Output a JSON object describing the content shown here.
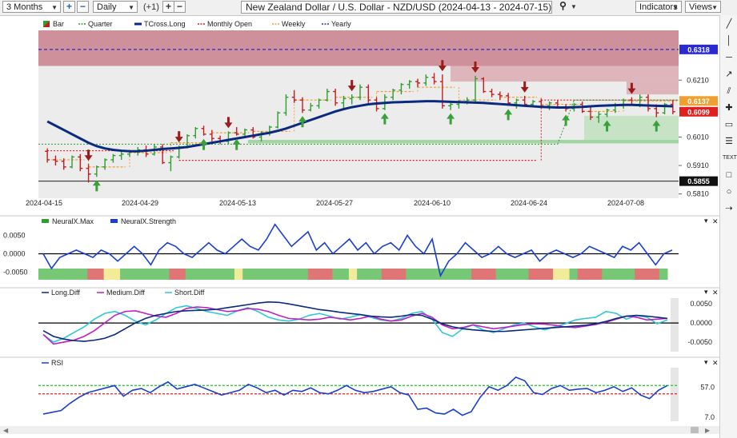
{
  "toolbar": {
    "period": "3 Months",
    "interval": "Daily",
    "offset": "(+1)",
    "title": "New Zealand Dollar / U.S. Dollar - NZD/USD (2024-04-13 - 2024-07-15)",
    "indicators_label": "Indicators",
    "views_label": "Views"
  },
  "sidebar_tools": [
    "line-tool-icon",
    "vertical-line-icon",
    "horizontal-line-icon",
    "ray-icon",
    "channel-icon",
    "crosshair-icon",
    "note-icon",
    "fib-icon",
    "text-icon",
    "rectangle-icon",
    "ellipse-icon",
    "arrow-tool-icon"
  ],
  "sidebar_text": "TEXT",
  "chart_data": [
    {
      "type": "candlestick",
      "legend": [
        {
          "name": "Bar",
          "color": "#2e9e2e"
        },
        {
          "name": "Quarter",
          "color": "#2e9e2e"
        },
        {
          "name": "TCross.Long",
          "color": "#0a2a80"
        },
        {
          "name": "Monthly Open",
          "color": "#d42020"
        },
        {
          "name": "Weekly",
          "color": "#f0a030"
        },
        {
          "name": "Yearly",
          "color": "#2a2ad0"
        }
      ],
      "x_dates": [
        "2024-04-15",
        "2024-04-29",
        "2024-05-13",
        "2024-05-27",
        "2024-06-10",
        "2024-06-24",
        "2024-07-08"
      ],
      "y_ticks": [
        0.581,
        0.591,
        0.601,
        0.621
      ],
      "y_tick_labels": [
        "0.5810",
        "0.5910",
        "0.6010",
        "0.6210"
      ],
      "ylim": [
        0.5795,
        0.6385
      ],
      "price_tags": [
        {
          "label": "0.6318",
          "value": 0.6318,
          "color": "#2a2ad0"
        },
        {
          "label": "0.6137",
          "value": 0.6137,
          "color": "#f0a030"
        },
        {
          "label": "0.6099",
          "value": 0.6099,
          "color": "#e02020"
        },
        {
          "label": "0.5855",
          "value": 0.5855,
          "color": "#111111"
        }
      ],
      "yearly_level": 0.6318,
      "low_level": 0.5855,
      "candles": [
        [
          0.596,
          0.597,
          0.592,
          0.593
        ],
        [
          0.593,
          0.5945,
          0.591,
          0.5925
        ],
        [
          0.5925,
          0.5935,
          0.5895,
          0.5905
        ],
        [
          0.5905,
          0.5945,
          0.59,
          0.594
        ],
        [
          0.594,
          0.595,
          0.589,
          0.59
        ],
        [
          0.59,
          0.5915,
          0.585,
          0.588
        ],
        [
          0.588,
          0.591,
          0.587,
          0.5905
        ],
        [
          0.5905,
          0.5935,
          0.5895,
          0.593
        ],
        [
          0.593,
          0.595,
          0.592,
          0.5945
        ],
        [
          0.5945,
          0.596,
          0.593,
          0.595
        ],
        [
          0.595,
          0.5965,
          0.594,
          0.5958
        ],
        [
          0.5958,
          0.5975,
          0.5945,
          0.5965
        ],
        [
          0.5965,
          0.598,
          0.594,
          0.595
        ],
        [
          0.595,
          0.5985,
          0.5945,
          0.5975
        ],
        [
          0.5975,
          0.5985,
          0.5915,
          0.592
        ],
        [
          0.592,
          0.5945,
          0.589,
          0.594
        ],
        [
          0.594,
          0.598,
          0.5935,
          0.5975
        ],
        [
          0.5975,
          0.602,
          0.597,
          0.6015
        ],
        [
          0.6015,
          0.6045,
          0.6005,
          0.604
        ],
        [
          0.604,
          0.605,
          0.6015,
          0.602
        ],
        [
          0.602,
          0.6035,
          0.5995,
          0.6005
        ],
        [
          0.6005,
          0.6015,
          0.5985,
          0.5995
        ],
        [
          0.5995,
          0.603,
          0.5985,
          0.6025
        ],
        [
          0.6025,
          0.6045,
          0.6015,
          0.602
        ],
        [
          0.602,
          0.604,
          0.601,
          0.6035
        ],
        [
          0.6035,
          0.6045,
          0.6005,
          0.601
        ],
        [
          0.601,
          0.603,
          0.5995,
          0.6025
        ],
        [
          0.6025,
          0.605,
          0.6015,
          0.6045
        ],
        [
          0.6045,
          0.61,
          0.604,
          0.6095
        ],
        [
          0.6095,
          0.616,
          0.6085,
          0.615
        ],
        [
          0.615,
          0.6175,
          0.613,
          0.614
        ],
        [
          0.614,
          0.615,
          0.6095,
          0.6105
        ],
        [
          0.6105,
          0.613,
          0.61,
          0.612
        ],
        [
          0.612,
          0.6145,
          0.611,
          0.614
        ],
        [
          0.614,
          0.618,
          0.6135,
          0.617
        ],
        [
          0.617,
          0.618,
          0.612,
          0.613
        ],
        [
          0.613,
          0.6155,
          0.611,
          0.6145
        ],
        [
          0.6145,
          0.616,
          0.6125,
          0.615
        ],
        [
          0.615,
          0.6195,
          0.614,
          0.6185
        ],
        [
          0.6185,
          0.6195,
          0.613,
          0.614
        ],
        [
          0.614,
          0.615,
          0.61,
          0.611
        ],
        [
          0.611,
          0.616,
          0.6105,
          0.615
        ],
        [
          0.615,
          0.618,
          0.614,
          0.6175
        ],
        [
          0.6175,
          0.62,
          0.616,
          0.6195
        ],
        [
          0.6195,
          0.621,
          0.618,
          0.6205
        ],
        [
          0.6205,
          0.6215,
          0.6185,
          0.62
        ],
        [
          0.62,
          0.623,
          0.619,
          0.622
        ],
        [
          0.622,
          0.6235,
          0.6195,
          0.6205
        ],
        [
          0.6205,
          0.623,
          0.611,
          0.612
        ],
        [
          0.612,
          0.6135,
          0.6105,
          0.6125
        ],
        [
          0.6125,
          0.614,
          0.611,
          0.6135
        ],
        [
          0.6135,
          0.615,
          0.6125,
          0.614
        ],
        [
          0.614,
          0.6225,
          0.6135,
          0.6215
        ],
        [
          0.6215,
          0.622,
          0.6165,
          0.617
        ],
        [
          0.617,
          0.618,
          0.615,
          0.616
        ],
        [
          0.616,
          0.617,
          0.614,
          0.6155
        ],
        [
          0.6155,
          0.6165,
          0.612,
          0.613
        ],
        [
          0.613,
          0.6145,
          0.611,
          0.614
        ],
        [
          0.614,
          0.6155,
          0.612,
          0.6125
        ],
        [
          0.6125,
          0.614,
          0.6115,
          0.6135
        ],
        [
          0.6135,
          0.6145,
          0.6115,
          0.612
        ],
        [
          0.612,
          0.6135,
          0.6105,
          0.613
        ],
        [
          0.613,
          0.614,
          0.611,
          0.6115
        ],
        [
          0.6115,
          0.6125,
          0.61,
          0.611
        ],
        [
          0.611,
          0.613,
          0.61,
          0.6125
        ],
        [
          0.6125,
          0.6135,
          0.6095,
          0.61
        ],
        [
          0.61,
          0.6115,
          0.607,
          0.608
        ],
        [
          0.608,
          0.61,
          0.606,
          0.609
        ],
        [
          0.609,
          0.611,
          0.608,
          0.6105
        ],
        [
          0.6105,
          0.613,
          0.6095,
          0.612
        ],
        [
          0.612,
          0.6145,
          0.611,
          0.614
        ],
        [
          0.614,
          0.615,
          0.612,
          0.6125
        ],
        [
          0.6125,
          0.616,
          0.6115,
          0.615
        ],
        [
          0.615,
          0.616,
          0.61,
          0.611
        ],
        [
          0.611,
          0.6125,
          0.608,
          0.6095
        ],
        [
          0.6095,
          0.613,
          0.609,
          0.6125
        ],
        [
          0.6125,
          0.614,
          0.609,
          0.6099
        ]
      ],
      "tcross_long": [
        0.6065,
        0.605,
        0.6035,
        0.602,
        0.6005,
        0.599,
        0.5978,
        0.597,
        0.5965,
        0.5962,
        0.596,
        0.596,
        0.5962,
        0.5965,
        0.5968,
        0.597,
        0.5972,
        0.5975,
        0.598,
        0.5985,
        0.599,
        0.5995,
        0.6,
        0.6005,
        0.601,
        0.6015,
        0.602,
        0.6025,
        0.6032,
        0.604,
        0.605,
        0.606,
        0.607,
        0.608,
        0.609,
        0.61,
        0.6108,
        0.6115,
        0.612,
        0.6125,
        0.6128,
        0.613,
        0.6132,
        0.6133,
        0.6134,
        0.6135,
        0.6136,
        0.6136,
        0.6135,
        0.6134,
        0.6133,
        0.6132,
        0.6131,
        0.613,
        0.6128,
        0.6126,
        0.6124,
        0.6122,
        0.612,
        0.6118,
        0.6116,
        0.6115,
        0.6114,
        0.6114,
        0.6115,
        0.6116,
        0.6118,
        0.612,
        0.6121,
        0.6122,
        0.6123,
        0.6123,
        0.6122,
        0.6121,
        0.612,
        0.6119,
        0.6118
      ]
    },
    {
      "type": "line",
      "legend": [
        {
          "name": "NeuralX.Max",
          "color": "#2e9e2e"
        },
        {
          "name": "NeuralX.Strength",
          "color": "#1a3fd0"
        }
      ],
      "y_tick_labels": [
        "0.0050",
        "0.0000",
        "-0.0050"
      ],
      "y_ticks": [
        0.005,
        0.0,
        -0.005
      ],
      "ylim": [
        -0.0075,
        0.0075
      ],
      "strength": [
        0.0,
        -0.004,
        -0.001,
        0.0,
        0.001,
        0.0,
        -0.001,
        0.001,
        0.0,
        -0.002,
        0.0,
        0.002,
        0.0,
        -0.003,
        0.001,
        0.003,
        0.002,
        0.0,
        -0.001,
        0.001,
        0.003,
        0.001,
        0.0,
        0.002,
        0.004,
        0.002,
        0.001,
        0.004,
        0.008,
        0.005,
        0.002,
        0.004,
        0.006,
        0.001,
        0.003,
        0.0,
        0.002,
        0.004,
        0.001,
        0.003,
        0.0,
        0.002,
        0.003,
        0.001,
        0.005,
        0.002,
        0.0,
        0.004,
        -0.006,
        -0.002,
        0.0,
        0.003,
        0.001,
        -0.001,
        0.0,
        0.002,
        0.0,
        -0.001,
        0.0,
        0.001,
        -0.002,
        0.0,
        0.001,
        0.0,
        -0.001,
        0.0,
        0.002,
        0.001,
        0.0,
        -0.001,
        0.002,
        0.001,
        0.003,
        0.0,
        -0.003,
        0.0,
        0.001
      ],
      "max_bars": [
        "green",
        "green",
        "green",
        "green",
        "green",
        "green",
        "red",
        "red",
        "yellow",
        "yellow",
        "green",
        "green",
        "green",
        "green",
        "green",
        "green",
        "red",
        "red",
        "green",
        "green",
        "green",
        "green",
        "green",
        "green",
        "yellow",
        "green",
        "green",
        "green",
        "green",
        "green",
        "green",
        "green",
        "green",
        "red",
        "red",
        "red",
        "green",
        "green",
        "yellow",
        "green",
        "green",
        "green",
        "red",
        "red",
        "red",
        "green",
        "green",
        "green",
        "green",
        "green",
        "green",
        "green",
        "green",
        "red",
        "red",
        "red",
        "green",
        "green",
        "green",
        "green",
        "red",
        "red",
        "red",
        "yellow",
        "yellow",
        "green",
        "red",
        "red",
        "red",
        "green",
        "green",
        "green",
        "green",
        "red",
        "red",
        "red",
        "green"
      ]
    },
    {
      "type": "line",
      "legend": [
        {
          "name": "Long.Diff",
          "color": "#0a2a80"
        },
        {
          "name": "Medium.Diff",
          "color": "#c020c0"
        },
        {
          "name": "Short.Diff",
          "color": "#30c8d8"
        }
      ],
      "y_tick_labels": [
        "0.0050",
        "0.0000",
        "-0.0050"
      ],
      "y_ticks": [
        0.005,
        0.0,
        -0.005
      ],
      "ylim": [
        -0.0075,
        0.0065
      ],
      "long": [
        -0.002,
        -0.0035,
        -0.0042,
        -0.0046,
        -0.0048,
        -0.0045,
        -0.004,
        -0.003,
        -0.0015,
        0.0,
        0.0012,
        0.002,
        0.0025,
        0.003,
        0.0032,
        0.0033,
        0.0034,
        0.0036,
        0.004,
        0.0044,
        0.0048,
        0.0052,
        0.0055,
        0.0054,
        0.005,
        0.0045,
        0.004,
        0.0035,
        0.0032,
        0.0028,
        0.0025,
        0.0022,
        0.0018,
        0.0016,
        0.0015,
        0.0018,
        0.0022,
        0.002,
        0.001,
        -0.0002,
        -0.001,
        -0.0015,
        -0.0018,
        -0.002,
        -0.0022,
        -0.0022,
        -0.002,
        -0.0018,
        -0.0016,
        -0.0014,
        -0.0012,
        -0.001,
        -0.0008,
        -0.0006,
        -0.0002,
        0.0004,
        0.0012,
        0.0018,
        0.002,
        0.0018,
        0.0015,
        0.0012
      ],
      "medium": [
        -0.003,
        -0.0055,
        -0.005,
        -0.0045,
        -0.0035,
        -0.002,
        0.0,
        0.002,
        0.003,
        0.0032,
        0.0025,
        0.0018,
        0.0015,
        0.0025,
        0.0038,
        0.0042,
        0.004,
        0.0035,
        0.003,
        0.0032,
        0.0038,
        0.0036,
        0.003,
        0.002,
        0.0012,
        0.001,
        0.0008,
        0.001,
        0.0015,
        0.0012,
        0.0008,
        0.0012,
        0.0018,
        0.001,
        0.0005,
        0.0008,
        0.0018,
        0.0025,
        0.0015,
        -0.0005,
        -0.0015,
        -0.0012,
        -0.0005,
        -0.001,
        -0.0015,
        -0.0012,
        -0.0008,
        -0.0004,
        -0.0002,
        -0.0003,
        -0.0006,
        -0.001,
        -0.0012,
        -0.0008,
        -0.0004,
        0.0002,
        0.001,
        0.0018,
        0.0015,
        0.0008,
        0.001,
        0.0012
      ],
      "short": [
        -0.003,
        -0.005,
        -0.004,
        -0.0025,
        -0.001,
        0.001,
        0.0025,
        0.003,
        0.002,
        0.0005,
        -0.0005,
        0.0008,
        0.0025,
        0.004,
        0.0045,
        0.0038,
        0.003,
        0.0025,
        0.002,
        0.0032,
        0.004,
        0.003,
        0.0015,
        0.0008,
        0.0005,
        0.001,
        0.002,
        0.0025,
        0.0018,
        0.001,
        0.0015,
        0.0022,
        0.0015,
        0.0008,
        0.0005,
        0.0012,
        0.0025,
        0.003,
        0.001,
        -0.0025,
        -0.0035,
        -0.0015,
        -0.0005,
        -0.0018,
        -0.0025,
        -0.0015,
        -0.0005,
        0.0,
        -0.001,
        -0.0018,
        -0.001,
        -0.0002,
        0.0008,
        0.0012,
        0.0015,
        0.003,
        0.0025,
        0.001,
        0.002,
        0.0015,
        -0.0002,
        0.0008
      ]
    },
    {
      "type": "line",
      "legend": [
        {
          "name": "RSI",
          "color": "#1a3fd0"
        }
      ],
      "y_tick_labels": [
        "57.0",
        "7.0"
      ],
      "y_ticks": [
        57.0,
        7.0
      ],
      "ylim": [
        0,
        90
      ],
      "levels": [
        {
          "value": 60,
          "color": "#30d030"
        },
        {
          "value": 46,
          "color": "#e02020"
        }
      ],
      "rsi": [
        12,
        15,
        18,
        30,
        40,
        48,
        52,
        56,
        60,
        42,
        52,
        55,
        48,
        58,
        66,
        54,
        58,
        62,
        56,
        50,
        44,
        48,
        52,
        62,
        56,
        48,
        52,
        44,
        52,
        50,
        56,
        48,
        46,
        52,
        60,
        52,
        48,
        50,
        54,
        58,
        48,
        44,
        20,
        22,
        14,
        12,
        20,
        10,
        16,
        40,
        58,
        52,
        60,
        74,
        68,
        48,
        45,
        55,
        60,
        52,
        54,
        55,
        48,
        52,
        58,
        50,
        56,
        44,
        38,
        52,
        60
      ]
    }
  ]
}
